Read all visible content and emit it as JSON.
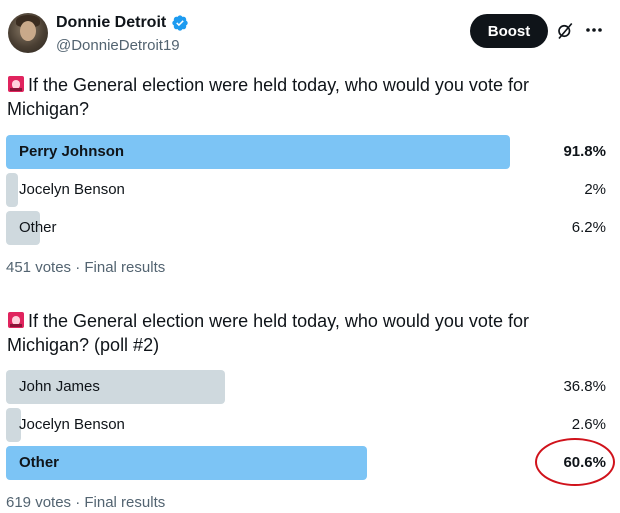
{
  "header": {
    "name": "Donnie Detroit",
    "handle": "@DonnieDetroit19",
    "boost_label": "Boost",
    "verified_icon": "verified-badge-icon",
    "avatar_desc": "avatar"
  },
  "polls": [
    {
      "question": "If the General election were held today, who would you vote for Michigan?",
      "options": [
        {
          "label": "Perry Johnson",
          "percent": "91.8%",
          "value": 91.8,
          "winner": true
        },
        {
          "label": "Jocelyn Benson",
          "percent": "2%",
          "value": 2,
          "winner": false
        },
        {
          "label": "Other",
          "percent": "6.2%",
          "value": 6.2,
          "winner": false
        }
      ],
      "meta": "451 votes · Final results"
    },
    {
      "question": "If the General election were held today, who would you vote for Michigan? (poll #2)",
      "options": [
        {
          "label": "John James",
          "percent": "36.8%",
          "value": 36.8,
          "winner": false
        },
        {
          "label": "Jocelyn Benson",
          "percent": "2.6%",
          "value": 2.6,
          "winner": false
        },
        {
          "label": "Other",
          "percent": "60.6%",
          "value": 60.6,
          "winner": true
        }
      ],
      "meta": "619 votes · Final results"
    }
  ],
  "colors": {
    "winner_bar": "#7cc4f5",
    "other_bar": "#cfd9de",
    "highlight_circle": "#d0121b"
  }
}
